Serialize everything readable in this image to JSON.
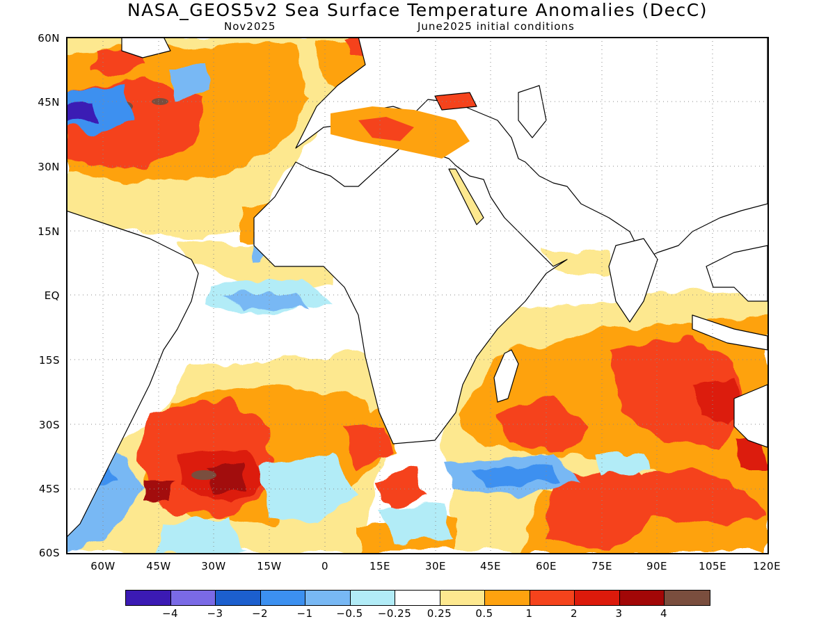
{
  "header": {
    "title": "NASA_GEOS5v2 Sea Surface Temperature Anomalies (DecC)",
    "valid_month": "Nov2025",
    "init_conditions": "June2025 initial conditions"
  },
  "axes": {
    "lat_labels": [
      "60N",
      "45N",
      "30N",
      "15N",
      "EQ",
      "15S",
      "30S",
      "45S",
      "60S"
    ],
    "lon_labels": [
      "60W",
      "45W",
      "30W",
      "15W",
      "0",
      "15E",
      "30E",
      "45E",
      "60E",
      "75E",
      "90E",
      "105E",
      "120E"
    ],
    "lat_range": [
      -60,
      60
    ],
    "lon_range": [
      -70,
      120
    ],
    "grid": "dotted"
  },
  "colorbar": {
    "colors": [
      "#3b1ab4",
      "#7a6ae6",
      "#1c5fce",
      "#3c90f0",
      "#78b8f4",
      "#b2ecf7",
      "#ffffff",
      "#fde88f",
      "#fea20f",
      "#f5431c",
      "#dc1a0b",
      "#a20707",
      "#7a4e3e"
    ],
    "labels": [
      "−4",
      "−3",
      "−2",
      "−1",
      "−0.5",
      "−0.25",
      "0.25",
      "0.5",
      "1",
      "2",
      "3",
      "4"
    ]
  },
  "map": {
    "land_color": "#ffffff",
    "coastline_color": "#000000",
    "regions": [
      "warm-north-atlantic",
      "cold-gulf-stream",
      "mediterranean-warm",
      "equatorial-atlantic-cool",
      "south-indian-warm",
      "southern-ocean-mixed"
    ]
  }
}
